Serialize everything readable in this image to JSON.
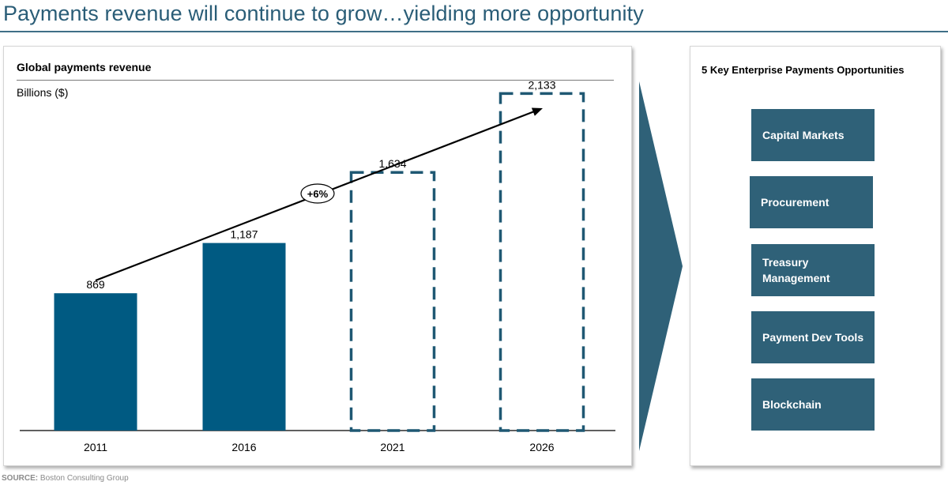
{
  "page": {
    "title": "Payments revenue will continue to grow…yielding more opportunity",
    "source_label": "SOURCE:",
    "source_text": "Boston Consulting Group"
  },
  "chart_data": {
    "type": "bar",
    "title": "Global payments revenue",
    "ylabel": "Billions ($)",
    "xlabel": "",
    "categories": [
      "2011",
      "2016",
      "2021",
      "2026"
    ],
    "values": [
      869,
      1187,
      1634,
      2133
    ],
    "value_labels": [
      "869",
      "1,187",
      "1,634",
      "2,133"
    ],
    "projected": [
      false,
      false,
      true,
      true
    ],
    "ylim": [
      0,
      2300
    ],
    "grid": false,
    "annotation": {
      "text": "+6%",
      "kind": "growth-trend-arrow"
    },
    "colors": {
      "bar": "#005a82",
      "projected_outline": "#1f5873",
      "axis": "#000000"
    }
  },
  "opportunities": {
    "title": "5 Key Enterprise Payments Opportunities",
    "items": [
      {
        "label": "Capital Markets"
      },
      {
        "label": "Procurement"
      },
      {
        "label": "Treasury\nManagement"
      },
      {
        "label": "Payment Dev Tools"
      },
      {
        "label": "Blockchain"
      }
    ],
    "color": "#2f6178"
  }
}
